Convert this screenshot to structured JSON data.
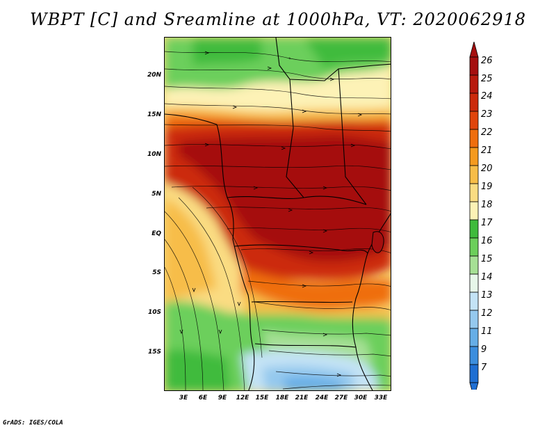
{
  "title": "WBPT [C] and Sreamline at 1000hPa, VT: 2020062918",
  "footer": "GrADS: IGES/COLA",
  "map": {
    "lat_labels": [
      "20N",
      "15N",
      "10N",
      "5N",
      "EQ",
      "5S",
      "10S",
      "15S"
    ],
    "lon_labels": [
      "3E",
      "6E",
      "9E",
      "12E",
      "15E",
      "18E",
      "21E",
      "24E",
      "27E",
      "30E",
      "33E"
    ]
  },
  "colorbar": {
    "labels": [
      "26",
      "25",
      "24",
      "23",
      "22",
      "21",
      "20",
      "19",
      "18",
      "17",
      "16",
      "15",
      "14",
      "13",
      "12",
      "11",
      "9",
      "7"
    ],
    "colors": [
      "#a50f0f",
      "#b81a0e",
      "#cc2a0c",
      "#e0450c",
      "#ef6e0e",
      "#f59a1e",
      "#f7bd48",
      "#fadc82",
      "#fdf2b6",
      "#3fbb3c",
      "#6ccf5b",
      "#a6e095",
      "#e7f7e9",
      "#c4e3f5",
      "#95c9ee",
      "#66aee7",
      "#3c8ede",
      "#1f6fd3"
    ]
  }
}
